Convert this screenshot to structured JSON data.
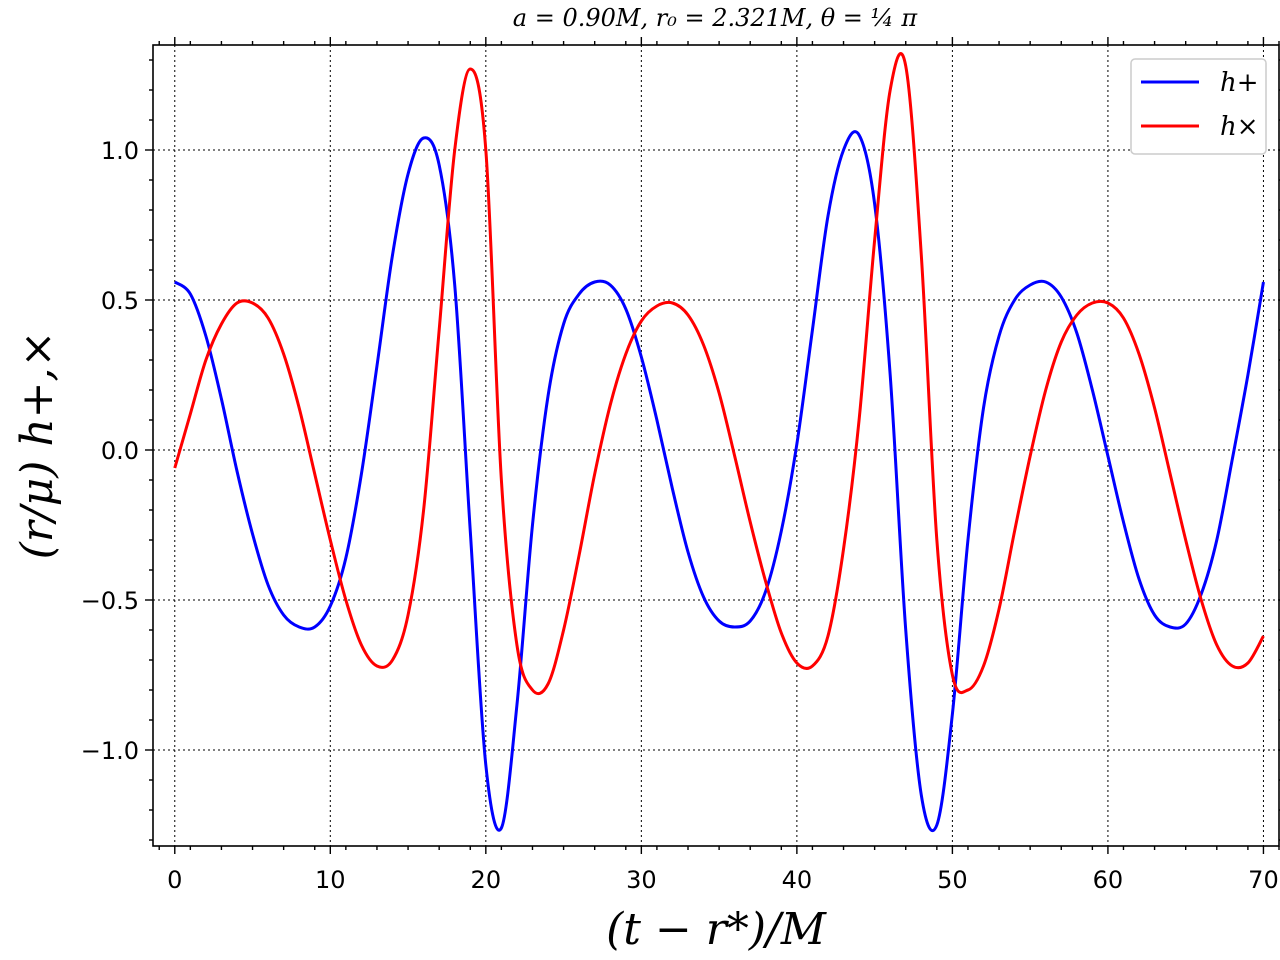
{
  "chart_data": {
    "type": "line",
    "title": "a = 0.90M,   r₀ = 2.321M,   θ = ¼ π",
    "xlabel": "(t − r*)/M",
    "ylabel": "(r/μ) h+,×",
    "xlim": [
      -1.4,
      71.0
    ],
    "ylim": [
      -1.32,
      1.35
    ],
    "x_ticks": [
      0,
      10,
      20,
      30,
      40,
      50,
      60,
      70
    ],
    "x_tick_labels": [
      "0",
      "10",
      "20",
      "30",
      "40",
      "50",
      "60",
      "70"
    ],
    "y_ticks": [
      -1.0,
      -0.5,
      0.0,
      0.5,
      1.0
    ],
    "y_tick_labels": [
      "−1.0",
      "−0.5",
      "0.0",
      "0.5",
      "1.0"
    ],
    "grid": true,
    "legend_position": "top-right",
    "x": [
      0,
      1,
      2,
      3,
      4,
      5,
      6,
      7,
      8,
      9,
      10,
      11,
      12,
      13,
      14,
      15,
      16,
      17,
      18,
      19,
      20,
      21,
      22,
      23,
      24,
      25,
      26,
      27,
      28,
      29,
      30,
      31,
      32,
      33,
      34,
      35,
      36,
      37,
      38,
      39,
      40,
      41,
      42,
      43,
      44,
      45,
      46,
      47,
      48,
      49,
      50,
      51,
      52,
      53,
      54,
      55,
      56,
      57,
      58,
      59,
      60,
      61,
      62,
      63,
      64,
      65,
      66,
      67,
      68,
      69,
      70
    ],
    "series": [
      {
        "name": "h+",
        "color": "#0000ff",
        "values": [
          0.56,
          0.52,
          0.38,
          0.17,
          -0.07,
          -0.28,
          -0.45,
          -0.55,
          -0.59,
          -0.59,
          -0.52,
          -0.36,
          -0.08,
          0.28,
          0.65,
          0.92,
          1.04,
          0.95,
          0.55,
          -0.27,
          -1.05,
          -1.26,
          -0.85,
          -0.25,
          0.18,
          0.42,
          0.52,
          0.56,
          0.55,
          0.47,
          0.31,
          0.1,
          -0.13,
          -0.34,
          -0.49,
          -0.57,
          -0.59,
          -0.57,
          -0.47,
          -0.27,
          0.02,
          0.4,
          0.78,
          1.0,
          1.05,
          0.82,
          0.25,
          -0.6,
          -1.15,
          -1.25,
          -0.88,
          -0.3,
          0.14,
          0.38,
          0.5,
          0.55,
          0.56,
          0.51,
          0.39,
          0.2,
          -0.02,
          -0.24,
          -0.43,
          -0.55,
          -0.59,
          -0.58,
          -0.48,
          -0.3,
          -0.03,
          0.25,
          0.56
        ]
      },
      {
        "name": "h×",
        "color": "#ff0000",
        "values": [
          -0.06,
          0.12,
          0.3,
          0.42,
          0.49,
          0.49,
          0.44,
          0.32,
          0.14,
          -0.08,
          -0.3,
          -0.5,
          -0.65,
          -0.72,
          -0.7,
          -0.55,
          -0.2,
          0.4,
          1.0,
          1.27,
          1.0,
          -0.1,
          -0.65,
          -0.8,
          -0.78,
          -0.6,
          -0.35,
          -0.08,
          0.15,
          0.32,
          0.43,
          0.48,
          0.49,
          0.45,
          0.35,
          0.19,
          -0.02,
          -0.24,
          -0.44,
          -0.61,
          -0.71,
          -0.72,
          -0.62,
          -0.33,
          0.1,
          0.7,
          1.2,
          1.28,
          0.65,
          -0.3,
          -0.75,
          -0.8,
          -0.72,
          -0.53,
          -0.27,
          -0.02,
          0.2,
          0.36,
          0.45,
          0.49,
          0.49,
          0.44,
          0.32,
          0.14,
          -0.08,
          -0.3,
          -0.5,
          -0.65,
          -0.72,
          -0.71,
          -0.62
        ]
      }
    ]
  }
}
